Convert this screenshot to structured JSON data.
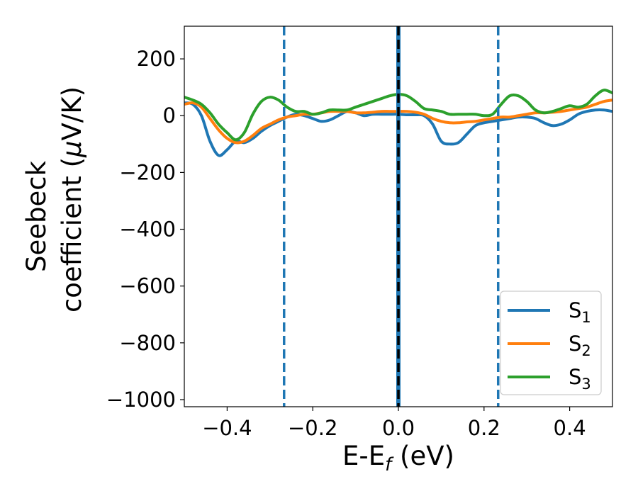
{
  "chart_data": {
    "type": "line",
    "xlabel": "E-E",
    "xlabel_sub": "f",
    "xlabel_unit": " (eV)",
    "ylabel_line1": "Seebeck",
    "ylabel_line2_prefix": "coefficient  (",
    "ylabel_mu": "μ",
    "ylabel_line2_suffix": "V/K)",
    "xlim": [
      -0.5,
      0.5
    ],
    "ylim": [
      -1025,
      315
    ],
    "x_ticks": [
      -0.4,
      -0.2,
      0.0,
      0.2,
      0.4
    ],
    "x_tick_labels": [
      "−0.4",
      "−0.2",
      "0.0",
      "0.2",
      "0.4"
    ],
    "y_ticks": [
      200,
      0,
      -200,
      -400,
      -600,
      -800,
      -1000
    ],
    "y_tick_labels": [
      "200",
      "0",
      "−200",
      "−400",
      "−600",
      "−800",
      "−1000"
    ],
    "grid": false,
    "legend_position": "bottom-right",
    "vertical_lines": [
      {
        "x": -0.267,
        "style": "dashed",
        "color": "#1f77b4"
      },
      {
        "x": 0.0,
        "style": "solid",
        "color": "#1f77b4"
      },
      {
        "x": 0.0,
        "style": "dashed",
        "color": "#000000"
      },
      {
        "x": 0.233,
        "style": "dashed",
        "color": "#1f77b4"
      }
    ],
    "series": [
      {
        "name": "S",
        "name_sub": "1",
        "color": "#1f77b4",
        "x": [
          -0.5,
          -0.48,
          -0.46,
          -0.44,
          -0.42,
          -0.4,
          -0.38,
          -0.36,
          -0.34,
          -0.32,
          -0.3,
          -0.28,
          -0.26,
          -0.24,
          -0.22,
          -0.2,
          -0.18,
          -0.16,
          -0.14,
          -0.12,
          -0.1,
          -0.08,
          -0.06,
          -0.04,
          -0.02,
          0.0,
          0.02,
          0.04,
          0.06,
          0.08,
          0.1,
          0.12,
          0.14,
          0.16,
          0.18,
          0.2,
          0.22,
          0.24,
          0.26,
          0.28,
          0.3,
          0.32,
          0.34,
          0.36,
          0.38,
          0.4,
          0.42,
          0.44,
          0.46,
          0.48,
          0.5
        ],
        "y": [
          45,
          40,
          0,
          -90,
          -140,
          -120,
          -90,
          -95,
          -80,
          -55,
          -35,
          -20,
          -5,
          5,
          0,
          -10,
          -20,
          -15,
          0,
          15,
          10,
          0,
          5,
          5,
          5,
          5,
          3,
          3,
          0,
          -30,
          -90,
          -100,
          -95,
          -65,
          -35,
          -25,
          -20,
          -15,
          -10,
          -5,
          -5,
          -10,
          -25,
          -35,
          -30,
          -15,
          5,
          15,
          20,
          20,
          15
        ]
      },
      {
        "name": "S",
        "name_sub": "2",
        "color": "#ff7f0e",
        "x": [
          -0.5,
          -0.48,
          -0.46,
          -0.44,
          -0.42,
          -0.4,
          -0.38,
          -0.36,
          -0.34,
          -0.32,
          -0.3,
          -0.28,
          -0.26,
          -0.24,
          -0.22,
          -0.2,
          -0.18,
          -0.16,
          -0.14,
          -0.12,
          -0.1,
          -0.08,
          -0.06,
          -0.04,
          -0.02,
          0.0,
          0.02,
          0.04,
          0.06,
          0.08,
          0.1,
          0.12,
          0.14,
          0.16,
          0.18,
          0.2,
          0.22,
          0.24,
          0.26,
          0.28,
          0.3,
          0.32,
          0.34,
          0.36,
          0.38,
          0.4,
          0.42,
          0.44,
          0.46,
          0.48,
          0.5
        ],
        "y": [
          40,
          45,
          30,
          -10,
          -50,
          -80,
          -95,
          -90,
          -70,
          -45,
          -30,
          -15,
          -5,
          0,
          5,
          5,
          10,
          15,
          15,
          15,
          10,
          10,
          12,
          15,
          15,
          15,
          15,
          12,
          5,
          -10,
          -20,
          -25,
          -25,
          -22,
          -20,
          -15,
          -10,
          -5,
          -5,
          0,
          5,
          10,
          10,
          12,
          15,
          20,
          25,
          30,
          40,
          50,
          55
        ]
      },
      {
        "name": "S",
        "name_sub": "3",
        "color": "#2ca02c",
        "x": [
          -0.5,
          -0.48,
          -0.46,
          -0.44,
          -0.42,
          -0.4,
          -0.38,
          -0.36,
          -0.34,
          -0.32,
          -0.3,
          -0.28,
          -0.26,
          -0.24,
          -0.22,
          -0.2,
          -0.18,
          -0.16,
          -0.14,
          -0.12,
          -0.1,
          -0.08,
          -0.06,
          -0.04,
          -0.02,
          0.0,
          0.02,
          0.04,
          0.06,
          0.08,
          0.1,
          0.12,
          0.14,
          0.16,
          0.18,
          0.2,
          0.22,
          0.24,
          0.26,
          0.28,
          0.3,
          0.32,
          0.34,
          0.36,
          0.38,
          0.4,
          0.42,
          0.44,
          0.46,
          0.48,
          0.5
        ],
        "y": [
          65,
          55,
          40,
          10,
          -30,
          -60,
          -85,
          -60,
          5,
          50,
          65,
          55,
          30,
          15,
          15,
          5,
          10,
          20,
          20,
          20,
          30,
          40,
          50,
          60,
          70,
          75,
          70,
          50,
          25,
          20,
          15,
          5,
          5,
          5,
          5,
          0,
          5,
          40,
          70,
          70,
          50,
          20,
          10,
          15,
          25,
          35,
          30,
          40,
          70,
          90,
          80
        ]
      }
    ]
  }
}
